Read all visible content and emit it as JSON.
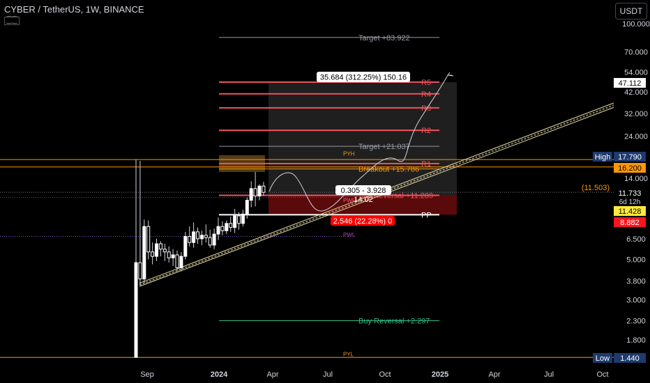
{
  "header": {
    "symbol_line": "CYBER / TetherUS, 1W, BINANCE",
    "sub_icon": "⁐⁐"
  },
  "currency_button": "USDT",
  "colors": {
    "background": "#000000",
    "candle_up": "#ffffff",
    "candle_down": "#ffffff",
    "resistance": "#f0545b",
    "target": "#9598a1",
    "breakout": "#ff9800",
    "buy_reversal": "#2ebd85",
    "trendline": "#e8dca8",
    "pp": "#ffffff",
    "dark_red_zone": "#5a0a0a",
    "neutral_zone": "#2a2a2a",
    "orange_zone": "#6b4a1a"
  },
  "chart_data": {
    "type": "candlestick",
    "title": "CYBER / TetherUS, 1W, BINANCE",
    "scale": "log",
    "ylim": [
      1.3,
      110
    ],
    "x_tick_labels": [
      "Sep",
      "2024",
      "Apr",
      "Jul",
      "Oct",
      "2025",
      "Apr",
      "Jul",
      "Oct"
    ],
    "y_tick_labels": [
      "100.000",
      "70.000",
      "54.000",
      "42.000",
      "32.000",
      "24.000",
      "14.000",
      "6.500",
      "5.000",
      "3.800",
      "3.000",
      "2.300",
      "1.800"
    ],
    "y_tick_values": [
      100,
      70,
      54,
      42,
      32,
      24,
      14,
      6.5,
      5.0,
      3.8,
      3.0,
      2.3,
      1.8
    ],
    "candles_ohlc": [
      [
        1.44,
        17.79,
        1.44,
        4.8
      ],
      [
        4.8,
        17.5,
        3.6,
        3.9
      ],
      [
        3.9,
        8.3,
        3.7,
        7.6
      ],
      [
        7.6,
        8.2,
        5.0,
        5.5
      ],
      [
        5.5,
        6.2,
        4.7,
        5.2
      ],
      [
        5.2,
        6.5,
        4.9,
        6.1
      ],
      [
        6.1,
        6.3,
        5.2,
        5.7
      ],
      [
        5.7,
        6.1,
        4.9,
        5.5
      ],
      [
        5.5,
        5.9,
        4.8,
        5.1
      ],
      [
        5.1,
        5.7,
        4.6,
        5.3
      ],
      [
        5.3,
        5.6,
        4.3,
        4.5
      ],
      [
        4.5,
        5.5,
        4.3,
        5.2
      ],
      [
        5.2,
        7.1,
        5.0,
        6.7
      ],
      [
        6.7,
        7.6,
        5.9,
        6.2
      ],
      [
        6.2,
        8.0,
        5.8,
        7.1
      ],
      [
        7.1,
        7.5,
        6.1,
        6.5
      ],
      [
        6.5,
        7.2,
        6.0,
        6.8
      ],
      [
        6.8,
        7.8,
        6.2,
        6.6
      ],
      [
        6.6,
        7.3,
        5.8,
        6.0
      ],
      [
        6.0,
        7.4,
        5.7,
        6.9
      ],
      [
        6.9,
        8.5,
        6.4,
        7.6
      ],
      [
        7.6,
        8.1,
        6.8,
        7.2
      ],
      [
        7.2,
        8.2,
        6.9,
        7.9
      ],
      [
        7.9,
        8.6,
        7.1,
        7.5
      ],
      [
        7.5,
        9.5,
        7.0,
        8.7
      ],
      [
        8.7,
        9.1,
        7.3,
        7.9
      ],
      [
        7.9,
        9.4,
        7.6,
        8.9
      ],
      [
        8.9,
        11.0,
        8.4,
        10.6
      ],
      [
        10.6,
        13.5,
        9.7,
        12.3
      ],
      [
        12.3,
        15.2,
        9.8,
        11.2
      ],
      [
        11.2,
        13.0,
        10.6,
        12.7
      ],
      [
        12.7,
        13.4,
        11.2,
        11.73
      ]
    ],
    "levels": [
      {
        "label": "Target +83.922",
        "value": 83.922,
        "kind": "target"
      },
      {
        "label": "R5",
        "value": 47.6,
        "kind": "resistance"
      },
      {
        "label": "R4",
        "value": 41.0,
        "kind": "resistance"
      },
      {
        "label": "R3",
        "value": 34.3,
        "kind": "resistance"
      },
      {
        "label": "R2",
        "value": 25.8,
        "kind": "resistance"
      },
      {
        "label": "Target +21.037",
        "value": 21.037,
        "kind": "target"
      },
      {
        "label": "R1",
        "value": 16.9,
        "kind": "resistance"
      },
      {
        "label": "Breakout +15.786",
        "value": 15.786,
        "kind": "breakout"
      },
      {
        "label": "Sell Reversal +11.289",
        "value": 11.289,
        "kind": "resistance"
      },
      {
        "label": "PP",
        "value": 8.82,
        "kind": "pp"
      },
      {
        "label": "Buy Reversal +2.297",
        "value": 2.297,
        "kind": "buy_reversal"
      }
    ],
    "horizontal_ray_labels": {
      "pyh": "PYH",
      "pwh": "PWH",
      "pwl": "PWL",
      "pyl": "PYL"
    },
    "annotations": {
      "projection_box": "35.684 (312.25%) 150.16",
      "entry_box_line1": "0.305 - 3.928",
      "entry_box_line2": "14.02",
      "loss_box": "2.546 (22.28%) 0",
      "countdown_value": "(11.503)"
    },
    "price_badges": [
      {
        "text": "47.112",
        "kind": "white"
      },
      {
        "label": "High",
        "text": "17.790",
        "kind": "navy"
      },
      {
        "text": "16.200",
        "kind": "orange"
      },
      {
        "text": "11.733",
        "kind": "black",
        "sub": "6d 12h"
      },
      {
        "text": "11.428",
        "kind": "yellow"
      },
      {
        "text": "8.882",
        "kind": "red"
      },
      {
        "label": "Low",
        "text": "1.440",
        "kind": "navy"
      }
    ]
  }
}
